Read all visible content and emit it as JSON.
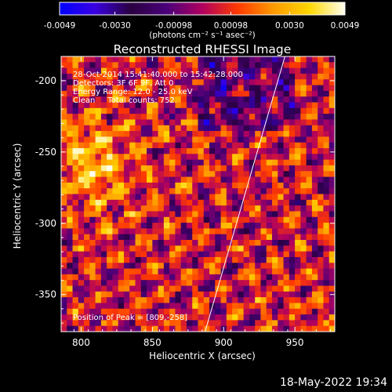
{
  "colorbar": {
    "tick_labels": [
      "-0.0049",
      "-0.0030",
      "-0.00098",
      "0.00098",
      "0.0030",
      "0.0049"
    ],
    "tick_values": [
      -0.0049,
      -0.003,
      -0.00098,
      0.00098,
      0.003,
      0.0049
    ],
    "range": [
      -0.0049,
      0.0049
    ],
    "units_label": "(photons cm⁻² s⁻¹ asec⁻²)",
    "colors": [
      "#0000ff",
      "#3a00e0",
      "#2a0040",
      "#4a007a",
      "#b00060",
      "#ff3a00",
      "#ff9a00",
      "#ffd700",
      "#fffff0"
    ]
  },
  "chart_data": {
    "type": "heatmap",
    "title": "Reconstructed RHESSI Image",
    "xlabel": "Heliocentric X (arcsec)",
    "ylabel": "Heliocentric Y (arcsec)",
    "xlim": [
      786,
      978
    ],
    "ylim": [
      -376,
      -183
    ],
    "x_ticks": [
      800,
      850,
      900,
      950
    ],
    "y_ticks": [
      -200,
      -250,
      -300,
      -350
    ],
    "x_tick_labels": [
      "800",
      "850",
      "900",
      "950"
    ],
    "y_tick_labels": [
      "-200",
      "-250",
      "-300",
      "-350"
    ],
    "pixel_size_arcsec": 4,
    "grid_cols": 48,
    "grid_rows": 48,
    "limb_line": [
      [
        887,
        -376
      ],
      [
        943,
        -183
      ]
    ],
    "info_lines": [
      "28-Oct-2014 15:41:40.000 to 15:42:28.000",
      "Detectors: 3F 6F 9F, Att 0",
      "Energy Range: 12.0 - 25.0 keV",
      "Clean     Total counts: 752."
    ],
    "peak_label": "Position of Peak = [809,-258]",
    "peak": [
      809,
      -258
    ]
  },
  "timestamp": "18-May-2022 19:34"
}
